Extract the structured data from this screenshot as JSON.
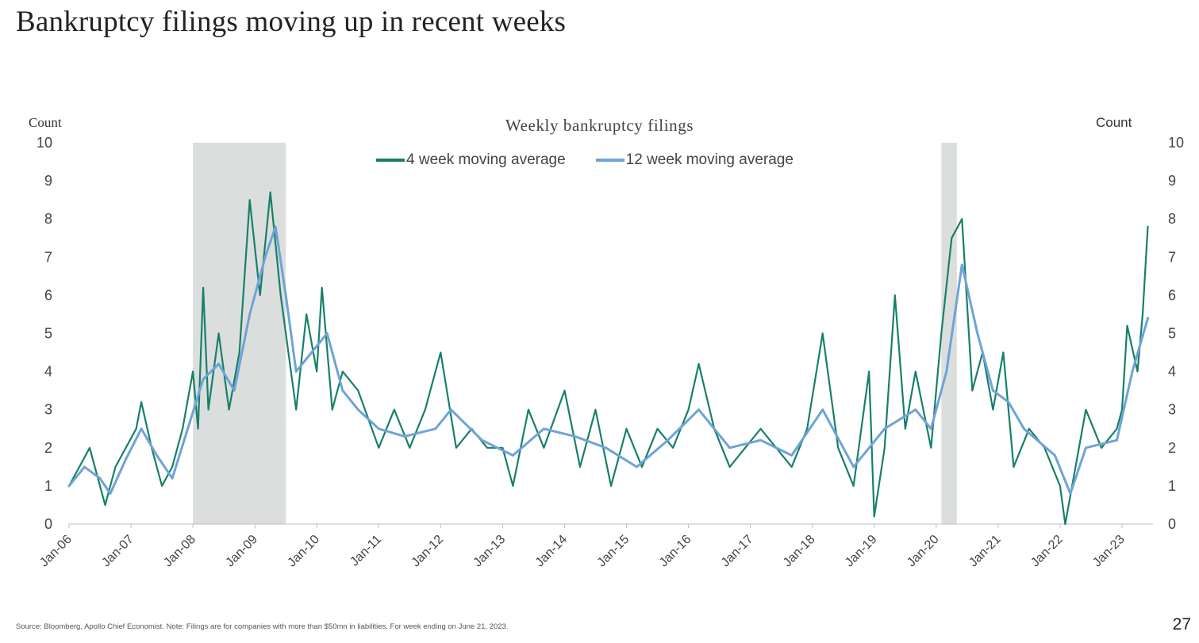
{
  "slide": {
    "title": "Bankruptcy filings moving up in recent weeks",
    "source": "Source: Bloomberg, Apollo Chief Economist. Note: Filings are for companies with more than $50mn in liabilities. For week ending on June 21, 2023.",
    "page_number": "27"
  },
  "chart_data": {
    "type": "line",
    "title": "Weekly bankruptcy filings",
    "ylabel_left": "Count",
    "ylabel_right": "Count",
    "ylim": [
      0,
      10
    ],
    "yticks": [
      0,
      1,
      2,
      3,
      4,
      5,
      6,
      7,
      8,
      9,
      10
    ],
    "xlim": [
      "2006-01",
      "2023-07"
    ],
    "xticks": [
      "Jan-06",
      "Jan-07",
      "Jan-08",
      "Jan-09",
      "Jan-10",
      "Jan-11",
      "Jan-12",
      "Jan-13",
      "Jan-14",
      "Jan-15",
      "Jan-16",
      "Jan-17",
      "Jan-18",
      "Jan-19",
      "Jan-20",
      "Jan-21",
      "Jan-22",
      "Jan-23"
    ],
    "legend_position": "top-center",
    "grid": false,
    "recession_shading": [
      {
        "start": "2008-01",
        "end": "2009-07"
      },
      {
        "start": "2020-02",
        "end": "2020-05"
      }
    ],
    "series": [
      {
        "name": "4 week moving average",
        "color": "#17806a",
        "points": [
          [
            "2006-01",
            1.0
          ],
          [
            "2006-03",
            1.5
          ],
          [
            "2006-05",
            2.0
          ],
          [
            "2006-07",
            1.0
          ],
          [
            "2006-08",
            0.5
          ],
          [
            "2006-10",
            1.5
          ],
          [
            "2006-12",
            2.0
          ],
          [
            "2007-02",
            2.5
          ],
          [
            "2007-03",
            3.2
          ],
          [
            "2007-05",
            2.0
          ],
          [
            "2007-07",
            1.0
          ],
          [
            "2007-09",
            1.5
          ],
          [
            "2007-11",
            2.5
          ],
          [
            "2008-01",
            4.0
          ],
          [
            "2008-02",
            2.5
          ],
          [
            "2008-03",
            6.2
          ],
          [
            "2008-04",
            3.0
          ],
          [
            "2008-06",
            5.0
          ],
          [
            "2008-08",
            3.0
          ],
          [
            "2008-10",
            4.5
          ],
          [
            "2008-12",
            8.5
          ],
          [
            "2009-02",
            6.0
          ],
          [
            "2009-04",
            8.7
          ],
          [
            "2009-06",
            6.0
          ],
          [
            "2009-08",
            4.0
          ],
          [
            "2009-09",
            3.0
          ],
          [
            "2009-11",
            5.5
          ],
          [
            "2010-01",
            4.0
          ],
          [
            "2010-02",
            6.2
          ],
          [
            "2010-04",
            3.0
          ],
          [
            "2010-06",
            4.0
          ],
          [
            "2010-09",
            3.5
          ],
          [
            "2011-01",
            2.0
          ],
          [
            "2011-04",
            3.0
          ],
          [
            "2011-07",
            2.0
          ],
          [
            "2011-10",
            3.0
          ],
          [
            "2012-01",
            4.5
          ],
          [
            "2012-04",
            2.0
          ],
          [
            "2012-07",
            2.5
          ],
          [
            "2012-10",
            2.0
          ],
          [
            "2013-01",
            2.0
          ],
          [
            "2013-03",
            1.0
          ],
          [
            "2013-06",
            3.0
          ],
          [
            "2013-09",
            2.0
          ],
          [
            "2014-01",
            3.5
          ],
          [
            "2014-04",
            1.5
          ],
          [
            "2014-07",
            3.0
          ],
          [
            "2014-10",
            1.0
          ],
          [
            "2015-01",
            2.5
          ],
          [
            "2015-04",
            1.5
          ],
          [
            "2015-07",
            2.5
          ],
          [
            "2015-10",
            2.0
          ],
          [
            "2016-01",
            3.0
          ],
          [
            "2016-03",
            4.2
          ],
          [
            "2016-06",
            2.5
          ],
          [
            "2016-09",
            1.5
          ],
          [
            "2016-12",
            2.0
          ],
          [
            "2017-03",
            2.5
          ],
          [
            "2017-06",
            2.0
          ],
          [
            "2017-09",
            1.5
          ],
          [
            "2017-12",
            2.5
          ],
          [
            "2018-03",
            5.0
          ],
          [
            "2018-06",
            2.0
          ],
          [
            "2018-09",
            1.0
          ],
          [
            "2018-12",
            4.0
          ],
          [
            "2019-01",
            0.2
          ],
          [
            "2019-03",
            2.0
          ],
          [
            "2019-05",
            6.0
          ],
          [
            "2019-07",
            2.5
          ],
          [
            "2019-09",
            4.0
          ],
          [
            "2019-12",
            2.0
          ],
          [
            "2020-02",
            5.0
          ],
          [
            "2020-04",
            7.5
          ],
          [
            "2020-06",
            8.0
          ],
          [
            "2020-08",
            3.5
          ],
          [
            "2020-10",
            4.5
          ],
          [
            "2020-12",
            3.0
          ],
          [
            "2021-02",
            4.5
          ],
          [
            "2021-04",
            1.5
          ],
          [
            "2021-07",
            2.5
          ],
          [
            "2021-10",
            2.0
          ],
          [
            "2022-01",
            1.0
          ],
          [
            "2022-02",
            0.0
          ],
          [
            "2022-04",
            1.5
          ],
          [
            "2022-06",
            3.0
          ],
          [
            "2022-09",
            2.0
          ],
          [
            "2022-12",
            2.5
          ],
          [
            "2023-01",
            3.0
          ],
          [
            "2023-02",
            5.2
          ],
          [
            "2023-04",
            4.0
          ],
          [
            "2023-05",
            5.5
          ],
          [
            "2023-06",
            7.8
          ]
        ]
      },
      {
        "name": "12 week moving average",
        "color": "#6fa3d6",
        "points": [
          [
            "2006-01",
            1.0
          ],
          [
            "2006-04",
            1.5
          ],
          [
            "2006-07",
            1.2
          ],
          [
            "2006-09",
            0.8
          ],
          [
            "2006-12",
            1.7
          ],
          [
            "2007-03",
            2.5
          ],
          [
            "2007-06",
            1.8
          ],
          [
            "2007-09",
            1.2
          ],
          [
            "2007-12",
            2.5
          ],
          [
            "2008-03",
            3.8
          ],
          [
            "2008-06",
            4.2
          ],
          [
            "2008-09",
            3.5
          ],
          [
            "2008-12",
            5.5
          ],
          [
            "2009-03",
            7.0
          ],
          [
            "2009-05",
            7.8
          ],
          [
            "2009-07",
            6.0
          ],
          [
            "2009-09",
            4.0
          ],
          [
            "2009-12",
            4.5
          ],
          [
            "2010-03",
            5.0
          ],
          [
            "2010-06",
            3.5
          ],
          [
            "2010-09",
            3.0
          ],
          [
            "2011-01",
            2.5
          ],
          [
            "2011-06",
            2.3
          ],
          [
            "2011-12",
            2.5
          ],
          [
            "2012-03",
            3.0
          ],
          [
            "2012-09",
            2.2
          ],
          [
            "2013-03",
            1.8
          ],
          [
            "2013-09",
            2.5
          ],
          [
            "2014-03",
            2.3
          ],
          [
            "2014-09",
            2.0
          ],
          [
            "2015-03",
            1.5
          ],
          [
            "2015-09",
            2.2
          ],
          [
            "2016-03",
            3.0
          ],
          [
            "2016-09",
            2.0
          ],
          [
            "2017-03",
            2.2
          ],
          [
            "2017-09",
            1.8
          ],
          [
            "2018-03",
            3.0
          ],
          [
            "2018-09",
            1.5
          ],
          [
            "2019-03",
            2.5
          ],
          [
            "2019-09",
            3.0
          ],
          [
            "2019-12",
            2.5
          ],
          [
            "2020-03",
            4.0
          ],
          [
            "2020-06",
            6.8
          ],
          [
            "2020-09",
            5.0
          ],
          [
            "2020-12",
            3.5
          ],
          [
            "2021-03",
            3.2
          ],
          [
            "2021-06",
            2.5
          ],
          [
            "2021-12",
            1.8
          ],
          [
            "2022-03",
            0.8
          ],
          [
            "2022-06",
            2.0
          ],
          [
            "2022-12",
            2.2
          ],
          [
            "2023-03",
            4.0
          ],
          [
            "2023-06",
            5.4
          ]
        ]
      }
    ]
  }
}
